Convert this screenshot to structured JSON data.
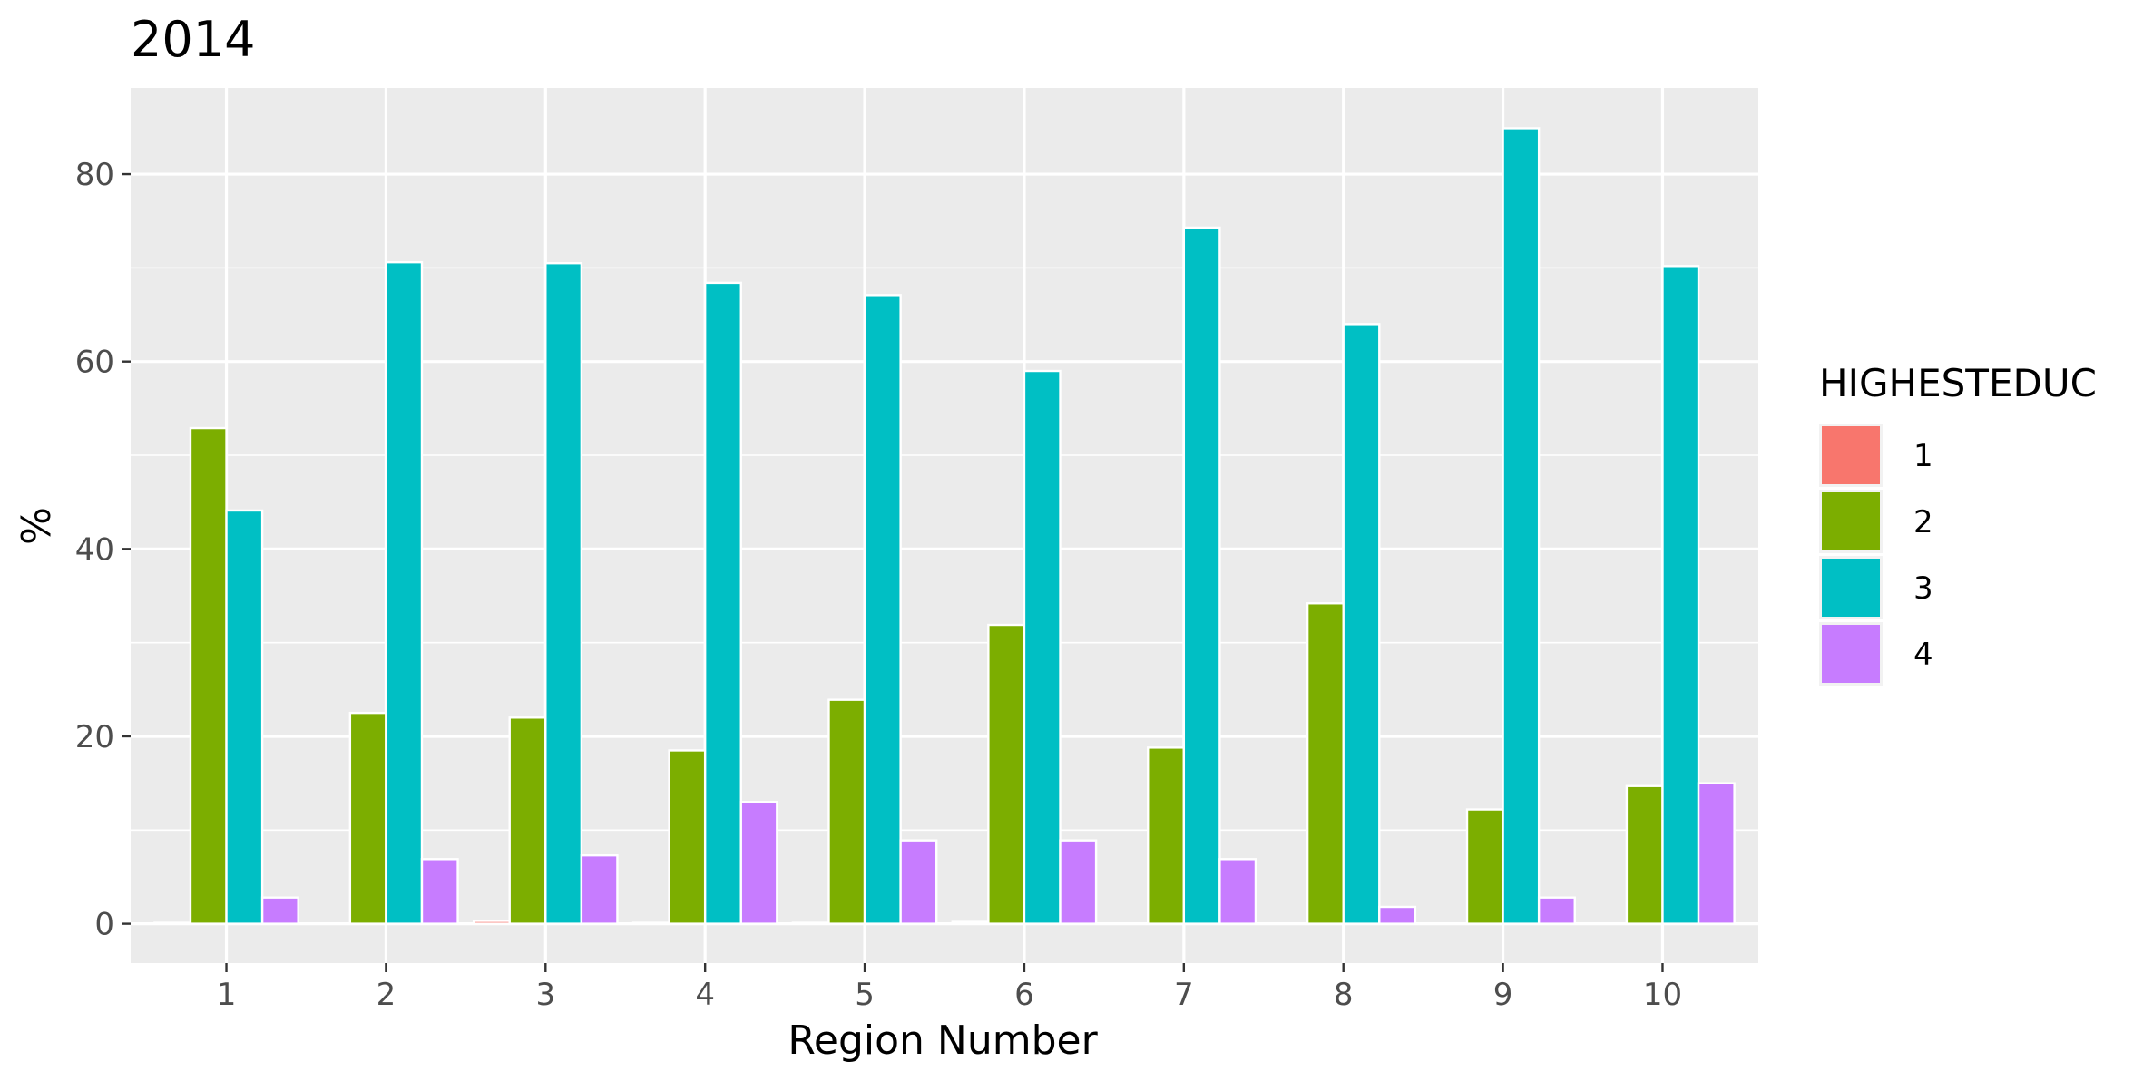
{
  "chart_data": {
    "type": "bar",
    "title": "2014",
    "xlabel": "Region Number",
    "ylabel": "%",
    "categories": [
      "1",
      "2",
      "3",
      "4",
      "5",
      "6",
      "7",
      "8",
      "9",
      "10"
    ],
    "ylim": [
      -4.2,
      89.2
    ],
    "yticks": [
      0,
      20,
      40,
      60,
      80
    ],
    "yticklabels": [
      "0",
      "20",
      "40",
      "60",
      "80"
    ],
    "grid": true,
    "legend": {
      "title": "HIGHESTEDUC",
      "position": "right"
    },
    "series": [
      {
        "name": "1",
        "color": "#F8766D",
        "values": [
          0.1,
          0,
          0.3,
          0.1,
          0.1,
          0.2,
          0,
          0,
          0,
          0
        ]
      },
      {
        "name": "2",
        "color": "#7CAE00",
        "values": [
          52.9,
          22.5,
          22.0,
          18.5,
          23.9,
          31.9,
          18.8,
          34.2,
          12.2,
          14.7
        ]
      },
      {
        "name": "3",
        "color": "#00BFC4",
        "values": [
          44.1,
          70.6,
          70.5,
          68.4,
          67.1,
          59.0,
          74.3,
          64.0,
          84.9,
          70.2
        ]
      },
      {
        "name": "4",
        "color": "#C77CFF",
        "values": [
          2.8,
          6.9,
          7.3,
          13.0,
          8.9,
          8.9,
          6.9,
          1.8,
          2.8,
          15.0
        ]
      }
    ]
  }
}
